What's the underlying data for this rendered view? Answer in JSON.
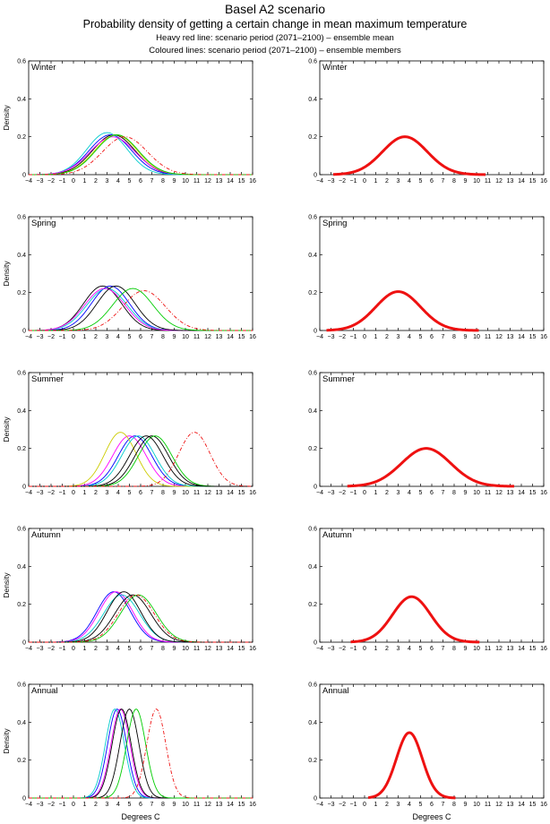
{
  "header": {
    "title": "Basel A2 scenario",
    "subtitle": "Probability density of getting a certain change in mean maximum temperature",
    "note1": "Heavy red line: scenario period (2071–2100) – ensemble mean",
    "note2": "Coloured lines: scenario period (2071–2100) – ensemble members"
  },
  "axes": {
    "ylabel": "Density",
    "xlabel": "Degrees C",
    "xlim": [
      -4,
      16
    ],
    "ylim": [
      0,
      0.6
    ],
    "xticks": [
      "−4",
      "−3",
      "−2",
      "−1",
      "0",
      "1",
      "2",
      "3",
      "4",
      "5",
      "6",
      "7",
      "8",
      "9",
      "10",
      "11",
      "12",
      "13",
      "14",
      "15",
      "16"
    ],
    "yticks": [
      "0",
      "0.2",
      "0.4",
      "0.6"
    ]
  },
  "colors": {
    "ensemble_mean": "#ee1111",
    "members": [
      "#000000",
      "#0000ff",
      "#00cc00",
      "#ff00ff",
      "#00cccc",
      "#cccc00",
      "#ee1111"
    ]
  },
  "chart_data": [
    {
      "type": "line",
      "season": "Winter",
      "column": "left",
      "members": [
        {
          "mean": 3.6,
          "sd": 1.9,
          "color": "#000000"
        },
        {
          "mean": 3.3,
          "sd": 1.9,
          "color": "#0000ff"
        },
        {
          "mean": 3.0,
          "sd": 1.8,
          "color": "#00cccc"
        },
        {
          "mean": 3.5,
          "sd": 2.0,
          "color": "#ff00ff"
        },
        {
          "mean": 3.8,
          "sd": 1.9,
          "color": "#cccc00"
        },
        {
          "mean": 3.9,
          "sd": 1.9,
          "color": "#00cc00"
        },
        {
          "mean": 4.6,
          "sd": 2.0,
          "color": "#ee1111",
          "dash": true
        }
      ]
    },
    {
      "type": "line",
      "season": "Winter",
      "column": "right",
      "mean": 3.6,
      "sd": 2.0,
      "peak": 0.2
    },
    {
      "type": "line",
      "season": "Spring",
      "column": "left",
      "members": [
        {
          "mean": 2.6,
          "sd": 1.7,
          "color": "#000000"
        },
        {
          "mean": 3.3,
          "sd": 1.7,
          "color": "#0000ff"
        },
        {
          "mean": 3.0,
          "sd": 1.8,
          "color": "#00cccc"
        },
        {
          "mean": 2.8,
          "sd": 1.8,
          "color": "#ff00ff"
        },
        {
          "mean": 3.8,
          "sd": 1.7,
          "color": "#000000"
        },
        {
          "mean": 5.3,
          "sd": 1.8,
          "color": "#00cc00"
        },
        {
          "mean": 6.3,
          "sd": 1.9,
          "color": "#ee1111",
          "dash": true
        }
      ]
    },
    {
      "type": "line",
      "season": "Spring",
      "column": "right",
      "mean": 3.0,
      "sd": 2.0,
      "peak": 0.205
    },
    {
      "type": "line",
      "season": "Summer",
      "column": "left",
      "members": [
        {
          "mean": 5.5,
          "sd": 1.5,
          "color": "#0000ff"
        },
        {
          "mean": 5.0,
          "sd": 1.5,
          "color": "#ff00ff"
        },
        {
          "mean": 4.2,
          "sd": 1.4,
          "color": "#cccc00"
        },
        {
          "mean": 5.8,
          "sd": 1.5,
          "color": "#00cccc"
        },
        {
          "mean": 7.0,
          "sd": 1.5,
          "color": "#000000"
        },
        {
          "mean": 7.3,
          "sd": 1.5,
          "color": "#00cc00"
        },
        {
          "mean": 6.5,
          "sd": 1.5,
          "color": "#000000"
        },
        {
          "mean": 10.8,
          "sd": 1.4,
          "color": "#ee1111",
          "dash": true
        }
      ]
    },
    {
      "type": "line",
      "season": "Summer",
      "column": "right",
      "mean": 5.5,
      "sd": 2.2,
      "peak": 0.2
    },
    {
      "type": "line",
      "season": "Autumn",
      "column": "left",
      "members": [
        {
          "mean": 3.6,
          "sd": 1.5,
          "color": "#0000ff"
        },
        {
          "mean": 3.8,
          "sd": 1.5,
          "color": "#ff00ff"
        },
        {
          "mean": 4.3,
          "sd": 1.6,
          "color": "#00cccc"
        },
        {
          "mean": 5.3,
          "sd": 1.6,
          "color": "#000000"
        },
        {
          "mean": 5.8,
          "sd": 1.6,
          "color": "#00cc00"
        },
        {
          "mean": 4.5,
          "sd": 1.5,
          "color": "#000000"
        },
        {
          "mean": 5.6,
          "sd": 1.6,
          "color": "#ee1111",
          "dash": true
        }
      ]
    },
    {
      "type": "line",
      "season": "Autumn",
      "column": "right",
      "mean": 4.2,
      "sd": 1.7,
      "peak": 0.24
    },
    {
      "type": "line",
      "season": "Annual",
      "column": "left",
      "members": [
        {
          "mean": 3.9,
          "sd": 0.85,
          "color": "#0000ff"
        },
        {
          "mean": 3.7,
          "sd": 0.85,
          "color": "#00cccc"
        },
        {
          "mean": 4.2,
          "sd": 0.85,
          "color": "#ff00ff"
        },
        {
          "mean": 4.3,
          "sd": 0.85,
          "color": "#000000"
        },
        {
          "mean": 5.0,
          "sd": 0.85,
          "color": "#000000"
        },
        {
          "mean": 5.6,
          "sd": 0.85,
          "color": "#00cc00"
        },
        {
          "mean": 7.4,
          "sd": 0.85,
          "color": "#ee1111",
          "dash": true
        }
      ]
    },
    {
      "type": "line",
      "season": "Annual",
      "column": "right",
      "mean": 4.0,
      "sd": 1.15,
      "peak": 0.345
    }
  ]
}
